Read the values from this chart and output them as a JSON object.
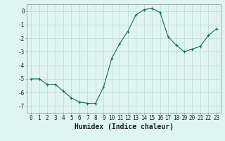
{
  "x": [
    0,
    1,
    2,
    3,
    4,
    5,
    6,
    7,
    8,
    9,
    10,
    11,
    12,
    13,
    14,
    15,
    16,
    17,
    18,
    19,
    20,
    21,
    22,
    23
  ],
  "y": [
    -5.0,
    -5.0,
    -5.4,
    -5.4,
    -5.9,
    -6.4,
    -6.7,
    -6.8,
    -6.8,
    -5.6,
    -3.5,
    -2.4,
    -1.5,
    -0.3,
    0.1,
    0.2,
    -0.1,
    -1.9,
    -2.5,
    -3.0,
    -2.8,
    -2.6,
    -1.8,
    -1.3
  ],
  "line_color": "#1a6b5a",
  "marker": "+",
  "marker_size": 3,
  "bg_color": "#dff5f0",
  "grid_color": "#c0ddd8",
  "xlabel": "Humidex (Indice chaleur)",
  "ylim": [
    -7.5,
    0.5
  ],
  "xlim": [
    -0.5,
    23.5
  ],
  "yticks": [
    0,
    -1,
    -2,
    -3,
    -4,
    -5,
    -6,
    -7
  ],
  "xtick_labels": [
    "0",
    "1",
    "2",
    "3",
    "4",
    "5",
    "6",
    "7",
    "8",
    "9",
    "10",
    "11",
    "12",
    "13",
    "14",
    "15",
    "16",
    "17",
    "18",
    "19",
    "20",
    "21",
    "22",
    "23"
  ],
  "label_fontsize": 6.5,
  "tick_fontsize": 5.5,
  "xlabel_fontsize": 7.0
}
